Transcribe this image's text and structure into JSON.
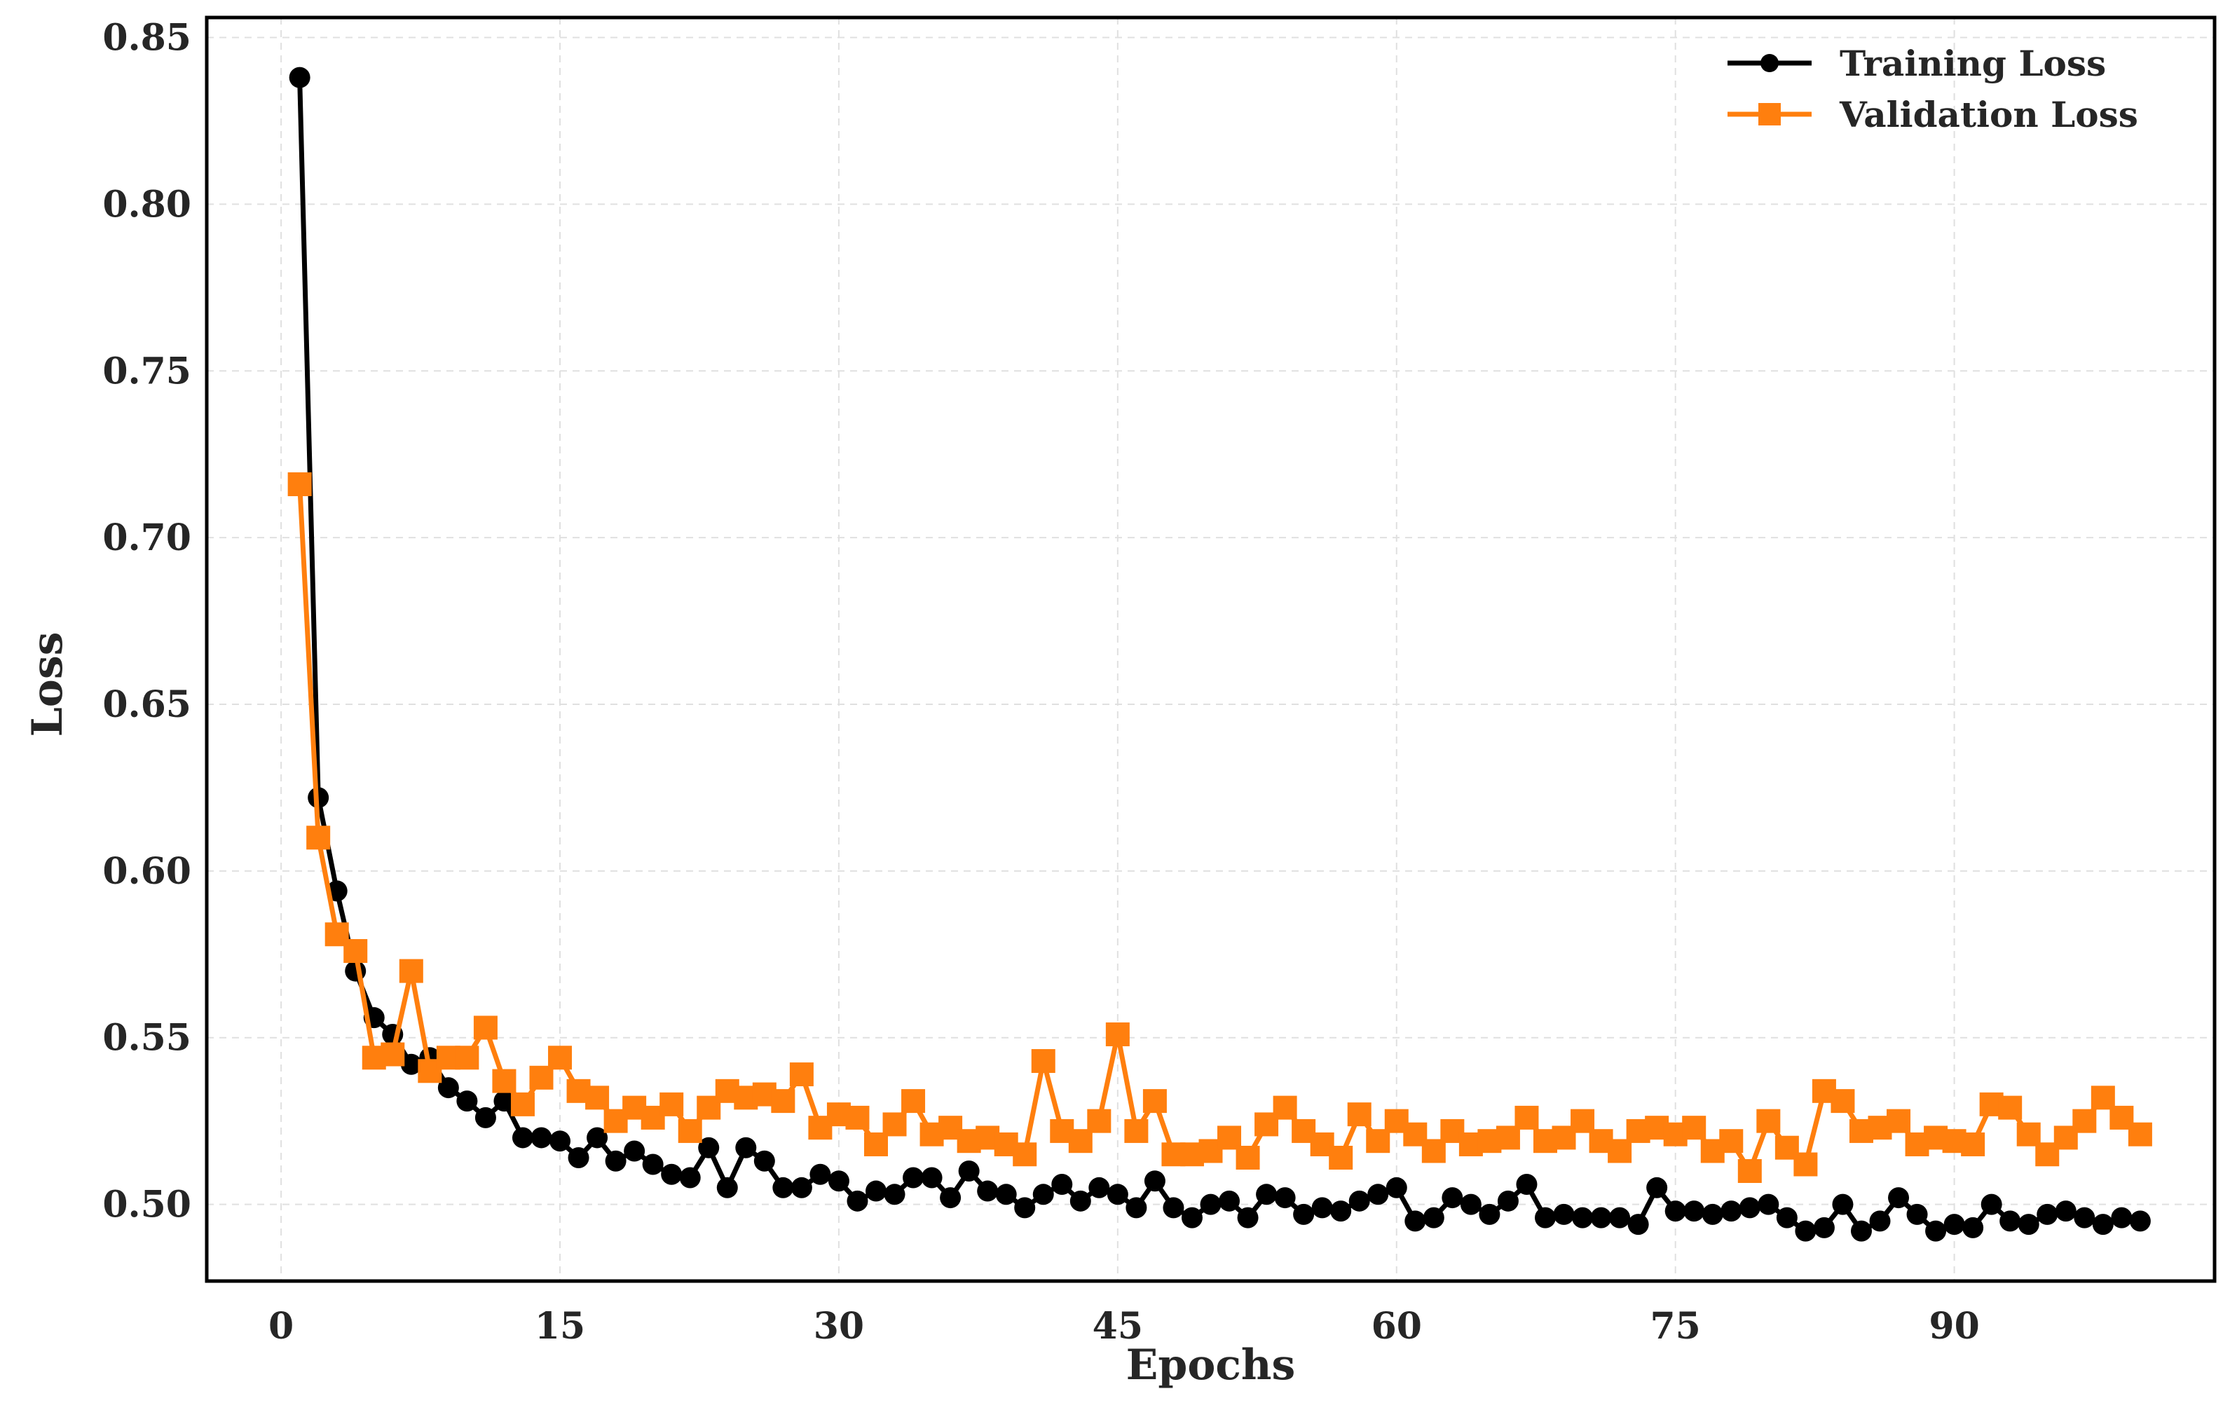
{
  "chart_data": {
    "type": "line",
    "title": "",
    "xlabel": "Epochs",
    "ylabel": "Loss",
    "xlim": [
      -4,
      104
    ],
    "ylim": [
      0.477,
      0.856
    ],
    "xticks": [
      0,
      15,
      30,
      45,
      60,
      75,
      90
    ],
    "yticks": [
      0.5,
      0.55,
      0.6,
      0.65,
      0.7,
      0.75,
      0.8,
      0.85
    ],
    "ytick_labels": [
      "0.50",
      "0.55",
      "0.60",
      "0.65",
      "0.70",
      "0.75",
      "0.80",
      "0.85"
    ],
    "grid": true,
    "legend_position": "upper right",
    "x": [
      1,
      2,
      3,
      4,
      5,
      6,
      7,
      8,
      9,
      10,
      11,
      12,
      13,
      14,
      15,
      16,
      17,
      18,
      19,
      20,
      21,
      22,
      23,
      24,
      25,
      26,
      27,
      28,
      29,
      30,
      31,
      32,
      33,
      34,
      35,
      36,
      37,
      38,
      39,
      40,
      41,
      42,
      43,
      44,
      45,
      46,
      47,
      48,
      49,
      50,
      51,
      52,
      53,
      54,
      55,
      56,
      57,
      58,
      59,
      60,
      61,
      62,
      63,
      64,
      65,
      66,
      67,
      68,
      69,
      70,
      71,
      72,
      73,
      74,
      75,
      76,
      77,
      78,
      79,
      80,
      81,
      82,
      83,
      84,
      85,
      86,
      87,
      88,
      89,
      90,
      91,
      92,
      93,
      94,
      95,
      96,
      97,
      98,
      99,
      100
    ],
    "series": [
      {
        "name": "Training Loss",
        "color": "#000000",
        "marker": "circle",
        "values": [
          0.838,
          0.622,
          0.594,
          0.57,
          0.556,
          0.551,
          0.542,
          0.544,
          0.535,
          0.531,
          0.526,
          0.531,
          0.52,
          0.52,
          0.519,
          0.514,
          0.52,
          0.513,
          0.516,
          0.512,
          0.509,
          0.508,
          0.517,
          0.505,
          0.517,
          0.513,
          0.505,
          0.505,
          0.509,
          0.507,
          0.501,
          0.504,
          0.503,
          0.508,
          0.508,
          0.502,
          0.51,
          0.504,
          0.503,
          0.499,
          0.503,
          0.506,
          0.501,
          0.505,
          0.503,
          0.499,
          0.507,
          0.499,
          0.496,
          0.5,
          0.501,
          0.496,
          0.503,
          0.502,
          0.497,
          0.499,
          0.498,
          0.501,
          0.503,
          0.505,
          0.495,
          0.496,
          0.502,
          0.5,
          0.497,
          0.501,
          0.506,
          0.496,
          0.497,
          0.496,
          0.496,
          0.496,
          0.494,
          0.505,
          0.498,
          0.498,
          0.497,
          0.498,
          0.499,
          0.5,
          0.496,
          0.492,
          0.493,
          0.5,
          0.492,
          0.495,
          0.502,
          0.497,
          0.492,
          0.494,
          0.493,
          0.5,
          0.495,
          0.494,
          0.497,
          0.498,
          0.496,
          0.494,
          0.496,
          0.495
        ]
      },
      {
        "name": "Validation Loss",
        "color": "#ff7f0e",
        "marker": "square",
        "values": [
          0.716,
          0.61,
          0.581,
          0.576,
          0.544,
          0.545,
          0.57,
          0.54,
          0.544,
          0.544,
          0.553,
          0.537,
          0.53,
          0.538,
          0.544,
          0.534,
          0.532,
          0.525,
          0.529,
          0.526,
          0.53,
          0.522,
          0.529,
          0.534,
          0.532,
          0.533,
          0.531,
          0.539,
          0.523,
          0.527,
          0.526,
          0.518,
          0.524,
          0.531,
          0.521,
          0.523,
          0.519,
          0.52,
          0.518,
          0.515,
          0.543,
          0.522,
          0.519,
          0.525,
          0.551,
          0.522,
          0.531,
          0.515,
          0.515,
          0.516,
          0.52,
          0.514,
          0.524,
          0.529,
          0.522,
          0.518,
          0.514,
          0.527,
          0.519,
          0.525,
          0.521,
          0.516,
          0.522,
          0.518,
          0.519,
          0.52,
          0.526,
          0.519,
          0.52,
          0.525,
          0.519,
          0.516,
          0.522,
          0.523,
          0.521,
          0.523,
          0.516,
          0.519,
          0.51,
          0.525,
          0.517,
          0.512,
          0.534,
          0.531,
          0.522,
          0.523,
          0.525,
          0.518,
          0.52,
          0.519,
          0.518,
          0.53,
          0.529,
          0.521,
          0.515,
          0.52,
          0.525,
          0.532,
          0.526,
          0.521
        ]
      }
    ]
  },
  "legend": {
    "items": [
      {
        "label": "Training Loss",
        "color": "#000000",
        "marker": "circle"
      },
      {
        "label": "Validation Loss",
        "color": "#ff7f0e",
        "marker": "square"
      }
    ]
  },
  "axes": {
    "xlabel": "Epochs",
    "ylabel": "Loss"
  }
}
